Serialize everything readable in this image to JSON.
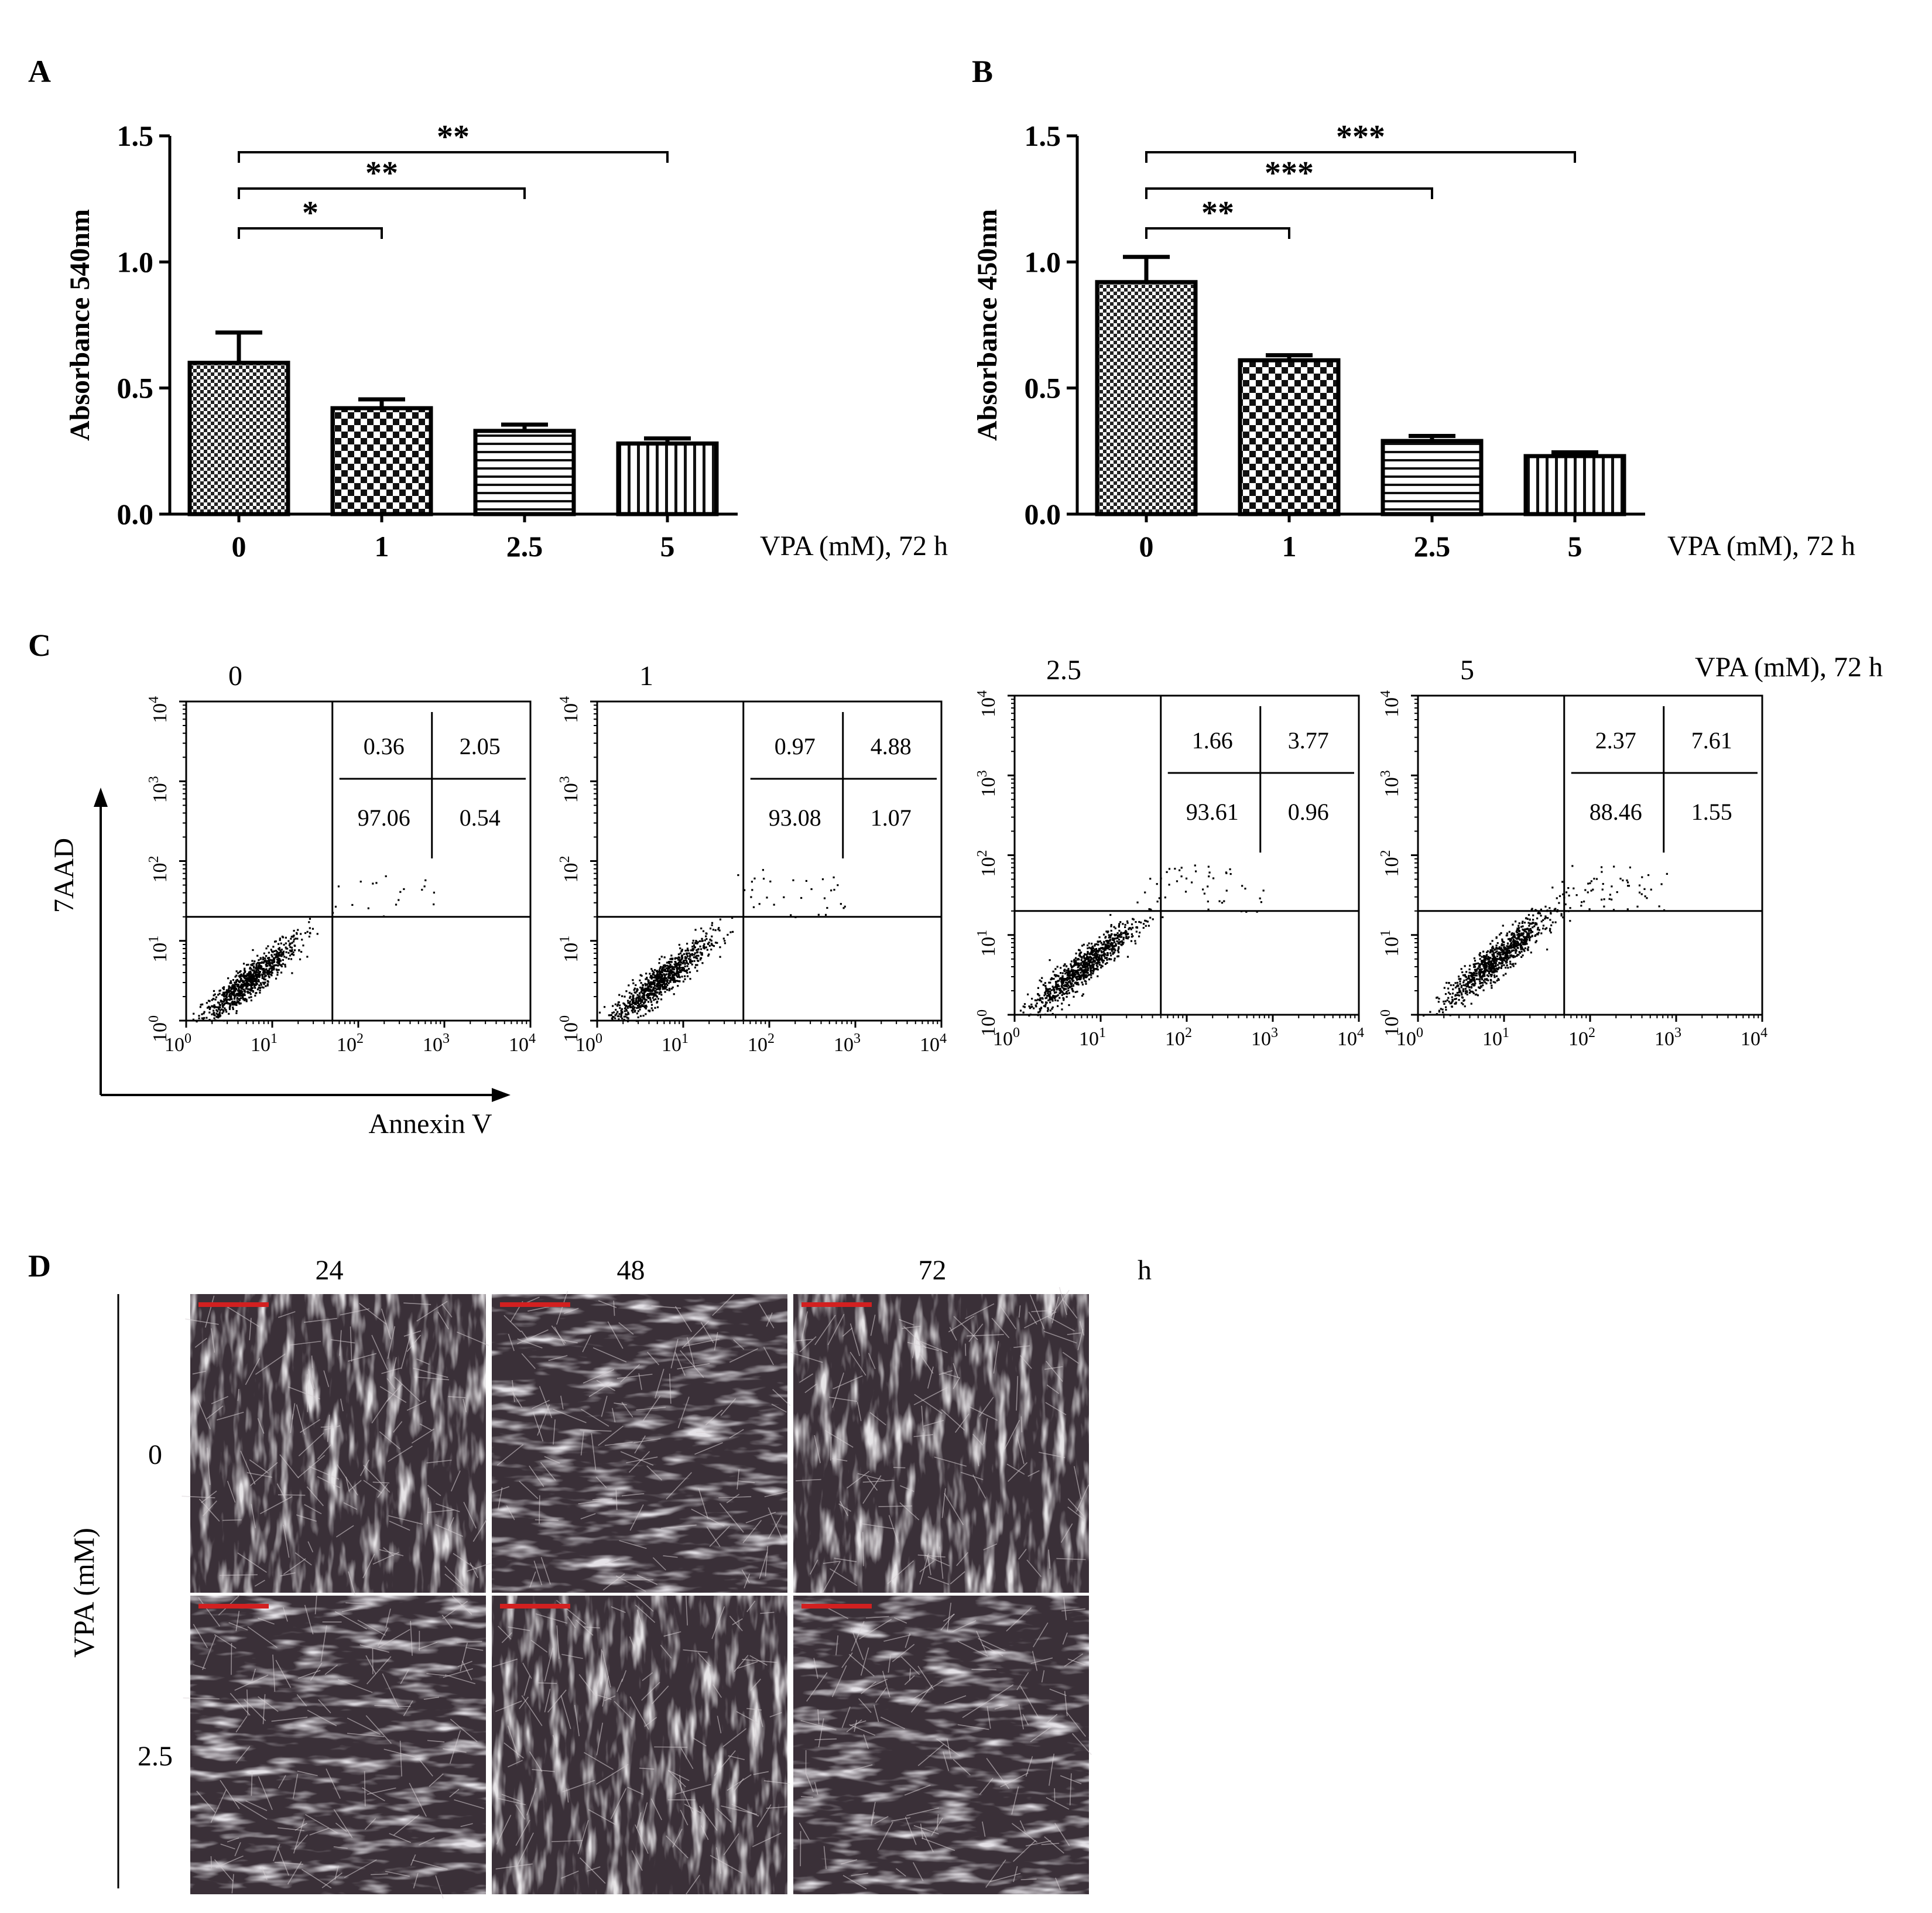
{
  "panel_labels": {
    "a": "A",
    "b": "B",
    "c": "C",
    "d": "D"
  },
  "chart_data": [
    {
      "panel": "A",
      "type": "bar",
      "categories": [
        "0",
        "1",
        "2.5",
        "5"
      ],
      "values": [
        0.6,
        0.42,
        0.33,
        0.28
      ],
      "errors": [
        0.12,
        0.035,
        0.025,
        0.02
      ],
      "ylabel": "Absorbance 540nm",
      "xlabel": "VPA (mM), 72 h",
      "ylim": [
        0,
        1.5
      ],
      "yticks": [
        "0.0",
        "0.5",
        "1.0",
        "1.5"
      ],
      "patterns": [
        "checker-fine",
        "checker-coarse",
        "horizontal-lines",
        "vertical-lines"
      ],
      "significance": [
        {
          "from": "0",
          "to": "1",
          "label": "*"
        },
        {
          "from": "0",
          "to": "2.5",
          "label": "**"
        },
        {
          "from": "0",
          "to": "5",
          "label": "**"
        }
      ]
    },
    {
      "panel": "B",
      "type": "bar",
      "categories": [
        "0",
        "1",
        "2.5",
        "5"
      ],
      "values": [
        0.92,
        0.61,
        0.29,
        0.23
      ],
      "errors": [
        0.1,
        0.02,
        0.02,
        0.015
      ],
      "ylabel": "Absorbance 450nm",
      "xlabel": "VPA (mM), 72 h",
      "ylim": [
        0,
        1.5
      ],
      "yticks": [
        "0.0",
        "0.5",
        "1.0",
        "1.5"
      ],
      "patterns": [
        "checker-fine",
        "checker-coarse",
        "horizontal-lines",
        "vertical-lines"
      ],
      "significance": [
        {
          "from": "0",
          "to": "1",
          "label": "**"
        },
        {
          "from": "0",
          "to": "2.5",
          "label": "***"
        },
        {
          "from": "0",
          "to": "5",
          "label": "***"
        }
      ]
    },
    {
      "panel": "C",
      "type": "scatter",
      "ylabel": "7AAD",
      "xlabel": "Annexin V",
      "condition_label": "VPA (mM), 72 h",
      "axis_scale": "log",
      "tick_exponents": [
        "0",
        "1",
        "2",
        "3",
        "4"
      ],
      "tick_base": "10",
      "gate_x": 50,
      "gate_y": 20,
      "plots": [
        {
          "title": "0",
          "quadrants": {
            "upper_left": "0.36",
            "upper_right": "2.05",
            "lower_left": "97.06",
            "lower_right": "0.54"
          },
          "cluster_center": [
            5,
            3
          ]
        },
        {
          "title": "1",
          "quadrants": {
            "upper_left": "0.97",
            "upper_right": "4.88",
            "lower_left": "93.08",
            "lower_right": "1.07"
          },
          "cluster_center": [
            5,
            3
          ]
        },
        {
          "title": "2.5",
          "quadrants": {
            "upper_left": "1.66",
            "upper_right": "3.77",
            "lower_left": "93.61",
            "lower_right": "0.96"
          },
          "cluster_center": [
            6,
            4
          ]
        },
        {
          "title": "5",
          "quadrants": {
            "upper_left": "2.37",
            "upper_right": "7.61",
            "lower_left": "88.46",
            "lower_right": "1.55"
          },
          "cluster_center": [
            8,
            5
          ]
        }
      ]
    }
  ],
  "micrographs": {
    "columns": [
      "24",
      "48",
      "72"
    ],
    "column_unit": "h",
    "rows": [
      "0",
      "2.5"
    ],
    "row_title": "VPA (mM)"
  },
  "colors": {
    "ink": "#000000",
    "micrograph_bg": "#3a3038",
    "scale_bar": "#d22020"
  }
}
